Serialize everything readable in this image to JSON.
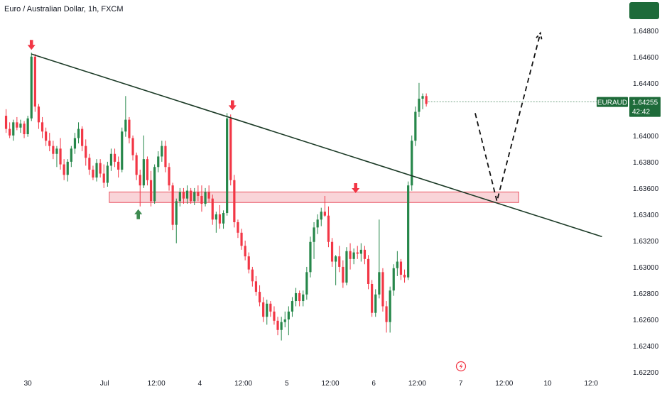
{
  "header": {
    "title": "Euro / Australian Dollar, 1h, FXCM"
  },
  "colors": {
    "bull": "#26874a",
    "bear": "#f23645",
    "trendline": "#1b3a26",
    "zone_fill": "#f7c6cb",
    "zone_stroke": "#e8505f",
    "marker_down": "#f23645",
    "marker_up": "#3d8a4f",
    "price_tag": "#1e6b3a",
    "axis_text": "#131722"
  },
  "chart_data": {
    "type": "candlestick",
    "symbol": "EURAUD",
    "timeframe": "1h",
    "ylim": [
      1.622,
      1.6495
    ],
    "xlim": [
      0,
      166
    ],
    "y_ticks": [
      "1.64800",
      "1.64600",
      "1.64400",
      "1.64200",
      "1.64000",
      "1.63800",
      "1.63600",
      "1.63400",
      "1.63200",
      "1.63000",
      "1.62800",
      "1.62600",
      "1.62400",
      "1.62200"
    ],
    "x_ticks": [
      {
        "label": "30",
        "x": 6.5
      },
      {
        "label": "Jul",
        "x": 27.7
      },
      {
        "label": "12:00",
        "x": 42
      },
      {
        "label": "4",
        "x": 54
      },
      {
        "label": "12:00",
        "x": 66
      },
      {
        "label": "5",
        "x": 78
      },
      {
        "label": "12:00",
        "x": 90
      },
      {
        "label": "6",
        "x": 102
      },
      {
        "label": "12:00",
        "x": 114
      },
      {
        "label": "7",
        "x": 126
      },
      {
        "label": "12:00",
        "x": 138
      },
      {
        "label": "10",
        "x": 150
      },
      {
        "label": "12:0",
        "x": 162
      }
    ],
    "candles": [
      [
        1.6415,
        1.642,
        1.6402,
        1.6405
      ],
      [
        1.6405,
        1.641,
        1.6398,
        1.64
      ],
      [
        1.64,
        1.6412,
        1.6396,
        1.641
      ],
      [
        1.641,
        1.6414,
        1.6404,
        1.6406
      ],
      [
        1.6406,
        1.6412,
        1.6402,
        1.6409
      ],
      [
        1.6409,
        1.6411,
        1.6398,
        1.6401
      ],
      [
        1.6401,
        1.6415,
        1.6399,
        1.6413
      ],
      [
        1.6413,
        1.6463,
        1.6411,
        1.646
      ],
      [
        1.646,
        1.6462,
        1.6418,
        1.6422
      ],
      [
        1.6422,
        1.6424,
        1.6405,
        1.641
      ],
      [
        1.641,
        1.6414,
        1.6398,
        1.6403
      ],
      [
        1.6403,
        1.6406,
        1.6392,
        1.6396
      ],
      [
        1.6396,
        1.6402,
        1.6388,
        1.6392
      ],
      [
        1.6392,
        1.6396,
        1.6382,
        1.6386
      ],
      [
        1.6386,
        1.6392,
        1.6376,
        1.639
      ],
      [
        1.639,
        1.6398,
        1.6374,
        1.6378
      ],
      [
        1.6378,
        1.6382,
        1.6366,
        1.637
      ],
      [
        1.637,
        1.6382,
        1.6365,
        1.638
      ],
      [
        1.638,
        1.6392,
        1.6376,
        1.639
      ],
      [
        1.639,
        1.6402,
        1.6386,
        1.6398
      ],
      [
        1.6398,
        1.641,
        1.6394,
        1.6405
      ],
      [
        1.6405,
        1.6407,
        1.6388,
        1.6392
      ],
      [
        1.6392,
        1.6397,
        1.6377,
        1.6383
      ],
      [
        1.6383,
        1.6386,
        1.637,
        1.6374
      ],
      [
        1.6374,
        1.6377,
        1.6366,
        1.6368
      ],
      [
        1.6368,
        1.6382,
        1.6365,
        1.6379
      ],
      [
        1.6379,
        1.6382,
        1.6368,
        1.6371
      ],
      [
        1.6371,
        1.6378,
        1.636,
        1.6364
      ],
      [
        1.6364,
        1.638,
        1.6361,
        1.6377
      ],
      [
        1.6377,
        1.639,
        1.6373,
        1.6386
      ],
      [
        1.6386,
        1.639,
        1.6376,
        1.638
      ],
      [
        1.638,
        1.6384,
        1.6368,
        1.6374
      ],
      [
        1.6374,
        1.6406,
        1.6372,
        1.6403
      ],
      [
        1.6403,
        1.643,
        1.6399,
        1.6412
      ],
      [
        1.6412,
        1.6414,
        1.6394,
        1.6398
      ],
      [
        1.6398,
        1.64,
        1.6381,
        1.6385
      ],
      [
        1.6385,
        1.6387,
        1.6366,
        1.637
      ],
      [
        1.637,
        1.6374,
        1.6346,
        1.6362
      ],
      [
        1.6362,
        1.64,
        1.636,
        1.6382
      ],
      [
        1.6382,
        1.6384,
        1.6362,
        1.6366
      ],
      [
        1.6366,
        1.6373,
        1.6346,
        1.635
      ],
      [
        1.635,
        1.6378,
        1.6348,
        1.6376
      ],
      [
        1.6376,
        1.6388,
        1.6372,
        1.6384
      ],
      [
        1.6384,
        1.6396,
        1.638,
        1.6392
      ],
      [
        1.6392,
        1.6396,
        1.6372,
        1.6376
      ],
      [
        1.6376,
        1.6379,
        1.6358,
        1.6362
      ],
      [
        1.6362,
        1.6364,
        1.6328,
        1.6332
      ],
      [
        1.6332,
        1.6352,
        1.6318,
        1.635
      ],
      [
        1.635,
        1.636,
        1.6346,
        1.6357
      ],
      [
        1.6357,
        1.636,
        1.6348,
        1.6352
      ],
      [
        1.6352,
        1.6362,
        1.6348,
        1.6358
      ],
      [
        1.6358,
        1.636,
        1.6348,
        1.635
      ],
      [
        1.635,
        1.636,
        1.6347,
        1.6357
      ],
      [
        1.6357,
        1.6362,
        1.635,
        1.6354
      ],
      [
        1.6354,
        1.6362,
        1.6342,
        1.6348
      ],
      [
        1.6348,
        1.636,
        1.6346,
        1.6357
      ],
      [
        1.6357,
        1.6362,
        1.6349,
        1.6352
      ],
      [
        1.6352,
        1.6355,
        1.6332,
        1.6336
      ],
      [
        1.6336,
        1.6342,
        1.6326,
        1.634
      ],
      [
        1.634,
        1.6347,
        1.6329,
        1.6333
      ],
      [
        1.6333,
        1.6343,
        1.6329,
        1.6341
      ],
      [
        1.6341,
        1.6417,
        1.6339,
        1.6413
      ],
      [
        1.6413,
        1.6416,
        1.6362,
        1.6366
      ],
      [
        1.6366,
        1.637,
        1.633,
        1.6334
      ],
      [
        1.6334,
        1.6336,
        1.6322,
        1.6326
      ],
      [
        1.6326,
        1.6329,
        1.6313,
        1.6316
      ],
      [
        1.6316,
        1.632,
        1.6305,
        1.6308
      ],
      [
        1.6308,
        1.6311,
        1.6295,
        1.6298
      ],
      [
        1.6298,
        1.63,
        1.6285,
        1.6289
      ],
      [
        1.6289,
        1.6293,
        1.6278,
        1.6281
      ],
      [
        1.6281,
        1.6286,
        1.627,
        1.6273
      ],
      [
        1.6273,
        1.6277,
        1.6258,
        1.6262
      ],
      [
        1.6262,
        1.6275,
        1.6256,
        1.6272
      ],
      [
        1.6272,
        1.6274,
        1.6262,
        1.6266
      ],
      [
        1.6266,
        1.627,
        1.6256,
        1.6259
      ],
      [
        1.6259,
        1.6262,
        1.6248,
        1.6252
      ],
      [
        1.6252,
        1.6262,
        1.6244,
        1.6258
      ],
      [
        1.6258,
        1.6266,
        1.6254,
        1.626
      ],
      [
        1.626,
        1.627,
        1.6248,
        1.6266
      ],
      [
        1.6266,
        1.6277,
        1.6262,
        1.6274
      ],
      [
        1.6274,
        1.6284,
        1.627,
        1.628
      ],
      [
        1.628,
        1.6282,
        1.627,
        1.6274
      ],
      [
        1.6274,
        1.6282,
        1.627,
        1.6279
      ],
      [
        1.6279,
        1.63,
        1.6275,
        1.6296
      ],
      [
        1.6296,
        1.6323,
        1.6292,
        1.6319
      ],
      [
        1.6319,
        1.6334,
        1.6306,
        1.633
      ],
      [
        1.633,
        1.634,
        1.6325,
        1.6336
      ],
      [
        1.6336,
        1.6345,
        1.6331,
        1.6342
      ],
      [
        1.6342,
        1.6354,
        1.6338,
        1.6339
      ],
      [
        1.6339,
        1.6346,
        1.6315,
        1.6319
      ],
      [
        1.6319,
        1.6322,
        1.63,
        1.6304
      ],
      [
        1.6304,
        1.6309,
        1.6286,
        1.6308
      ],
      [
        1.6308,
        1.6316,
        1.6296,
        1.63
      ],
      [
        1.63,
        1.6305,
        1.6284,
        1.6288
      ],
      [
        1.6288,
        1.6315,
        1.6286,
        1.6312
      ],
      [
        1.6312,
        1.6318,
        1.6298,
        1.6306
      ],
      [
        1.6306,
        1.6314,
        1.6302,
        1.6311
      ],
      [
        1.6311,
        1.6316,
        1.6306,
        1.631
      ],
      [
        1.631,
        1.6318,
        1.6304,
        1.6313
      ],
      [
        1.6313,
        1.6316,
        1.6302,
        1.6306
      ],
      [
        1.6306,
        1.6309,
        1.6283,
        1.6287
      ],
      [
        1.6287,
        1.629,
        1.6262,
        1.6265
      ],
      [
        1.6265,
        1.6283,
        1.6262,
        1.6279
      ],
      [
        1.6279,
        1.6336,
        1.6276,
        1.6296
      ],
      [
        1.6296,
        1.6299,
        1.6266,
        1.627
      ],
      [
        1.627,
        1.6274,
        1.625,
        1.6258
      ],
      [
        1.6258,
        1.6285,
        1.625,
        1.6282
      ],
      [
        1.6282,
        1.6302,
        1.6278,
        1.6299
      ],
      [
        1.6299,
        1.6312,
        1.6293,
        1.6304
      ],
      [
        1.6304,
        1.6306,
        1.629,
        1.6294
      ],
      [
        1.6294,
        1.6298,
        1.6288,
        1.6292
      ],
      [
        1.6292,
        1.6365,
        1.629,
        1.6362
      ],
      [
        1.6362,
        1.64,
        1.6358,
        1.6396
      ],
      [
        1.6396,
        1.6422,
        1.6392,
        1.6418
      ],
      [
        1.6418,
        1.644,
        1.6414,
        1.6428
      ],
      [
        1.6428,
        1.6432,
        1.642,
        1.643
      ],
      [
        1.643,
        1.6432,
        1.6422,
        1.6424
      ]
    ],
    "trendline": {
      "from": [
        7.5,
        1.6462
      ],
      "to": [
        165,
        1.6323
      ]
    },
    "zone": {
      "x_start": 29,
      "x_end": 142,
      "y_low": 1.6349,
      "y_high": 1.6357
    },
    "projection": [
      [
        130,
        1.6417
      ],
      [
        136,
        1.635
      ],
      [
        148,
        1.6478
      ]
    ],
    "markers": [
      {
        "type": "down",
        "x": 7.5,
        "y": 1.6463
      },
      {
        "type": "down",
        "x": 63,
        "y": 1.6417
      },
      {
        "type": "up",
        "x": 37,
        "y": 1.6346
      },
      {
        "type": "down",
        "x": 97,
        "y": 1.6354
      }
    ],
    "price_tag": {
      "symbol": "EURAUD",
      "price": "1.64255",
      "countdown": "42:42",
      "value": 1.64255
    }
  }
}
